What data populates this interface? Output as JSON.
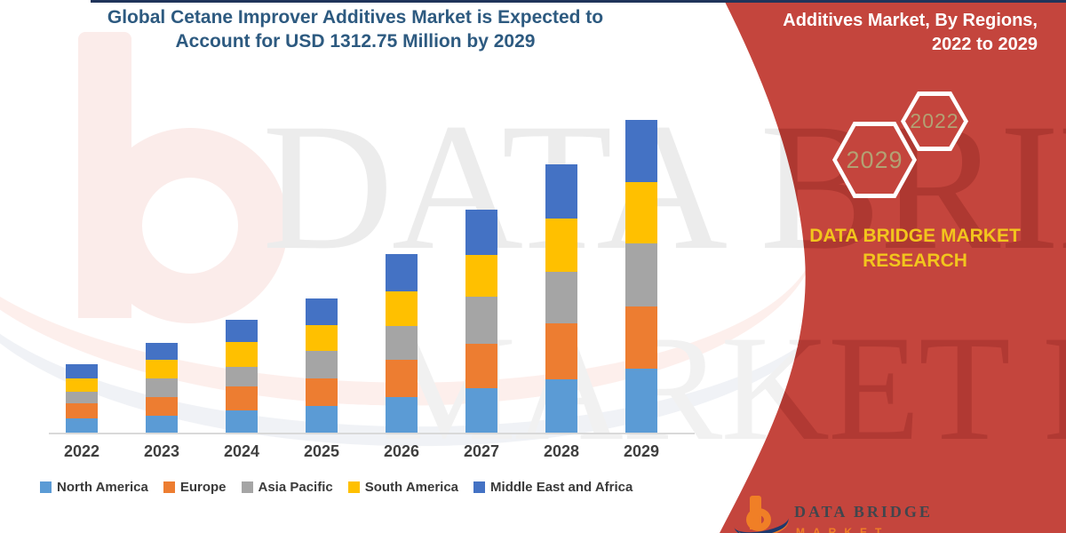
{
  "title": {
    "line1": "Global Cetane Improver Additives Market is Expected to",
    "line2": "Account for USD 1312.75 Million by 2029"
  },
  "panel": {
    "bg_color": "#c4453d",
    "heading_line1": "Additives Market, By Regions,",
    "heading_line2": "2022 to 2029",
    "hex_front_label": "2029",
    "hex_back_label": "2022",
    "brand_line1": "DATA BRIDGE MARKET",
    "brand_line2": "RESEARCH"
  },
  "watermark": {
    "line1": "DATA BRIDGE",
    "line2": "MARKET RESEARCH"
  },
  "logo": {
    "text": "DATA BRIDGE",
    "subtext": "MARKET RESEARCH"
  },
  "chart_data": {
    "type": "bar",
    "stacked": true,
    "title": "Global Cetane Improver Additives Market is Expected to Account for USD 1312.75 Million by 2029",
    "xlabel": "",
    "ylabel": "",
    "y_axis_visible": false,
    "grid": false,
    "legend_position": "bottom",
    "units": "USD Million (values estimated from bar heights; 2029 total anchored to 1312.75)",
    "categories": [
      "2022",
      "2023",
      "2024",
      "2025",
      "2026",
      "2027",
      "2028",
      "2029"
    ],
    "series": [
      {
        "name": "North America",
        "color": "#5b9bd5",
        "values": [
          60,
          71,
          93,
          112,
          149,
          186,
          224,
          268
        ]
      },
      {
        "name": "Europe",
        "color": "#ed7d31",
        "values": [
          63,
          79,
          101,
          116,
          157,
          187,
          234,
          261
        ]
      },
      {
        "name": "Asia Pacific",
        "color": "#a5a5a5",
        "values": [
          48,
          78,
          82,
          115,
          141,
          197,
          217,
          265
        ]
      },
      {
        "name": "South America",
        "color": "#ffc000",
        "values": [
          58,
          78,
          104,
          108,
          146,
          176,
          224,
          258
        ]
      },
      {
        "name": "Middle East and Africa",
        "color": "#4472c4",
        "values": [
          60,
          71,
          93,
          112,
          156,
          190,
          227,
          261
        ]
      }
    ],
    "totals": [
      289,
      377,
      473,
      563,
      749,
      936,
      1126,
      1313
    ]
  }
}
